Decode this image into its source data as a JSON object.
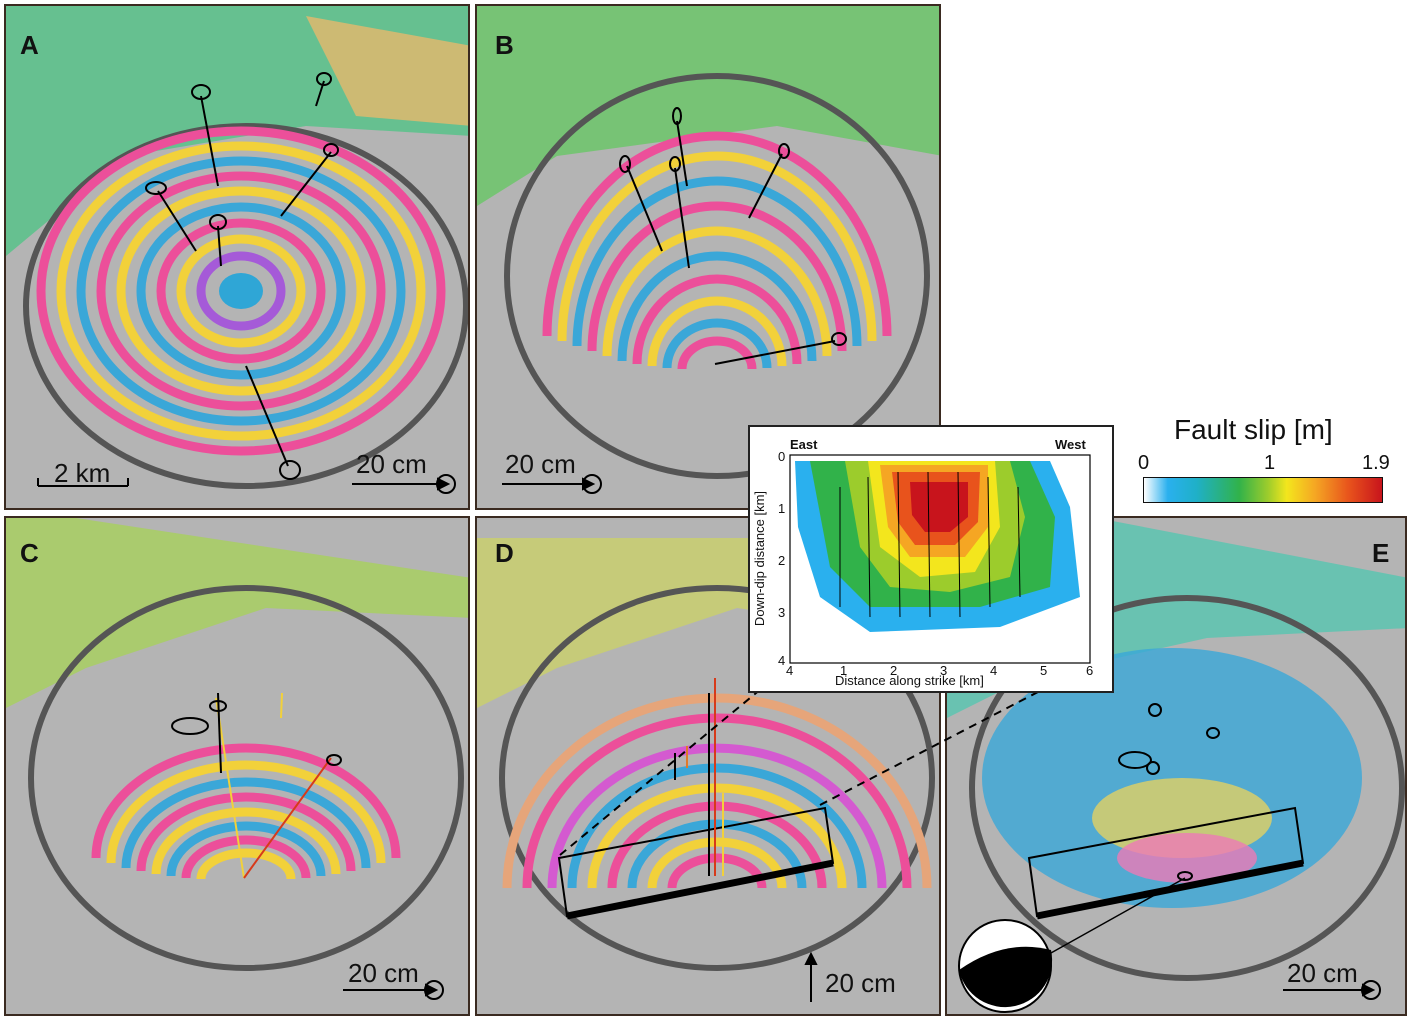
{
  "panels": {
    "a": {
      "label": "A",
      "scalebar": "2 km",
      "vector_scale": "20 cm"
    },
    "b": {
      "label": "B",
      "vector_scale": "20 cm"
    },
    "c": {
      "label": "C",
      "vector_scale": "20 cm"
    },
    "d": {
      "label": "D",
      "vector_scale": "20 cm"
    },
    "e": {
      "label": "E",
      "vector_scale": "20 cm"
    }
  },
  "inset": {
    "left_label": "East",
    "right_label": "West",
    "xlabel": "Distance along strike [km]",
    "ylabel": "Down-dip distance [km]",
    "x_ticks": [
      "1",
      "2",
      "3",
      "4",
      "5",
      "6"
    ],
    "x_origin": "4",
    "y_ticks": [
      "0",
      "1",
      "2",
      "3",
      "4"
    ]
  },
  "colorbar": {
    "title": "Fault slip [m]",
    "min_label": "0",
    "mid_label": "1",
    "max_label": "1.9",
    "colors": [
      "#ffffff",
      "#2ab0ee",
      "#31b24a",
      "#f3e61d",
      "#f5a623",
      "#c8141c"
    ]
  }
}
